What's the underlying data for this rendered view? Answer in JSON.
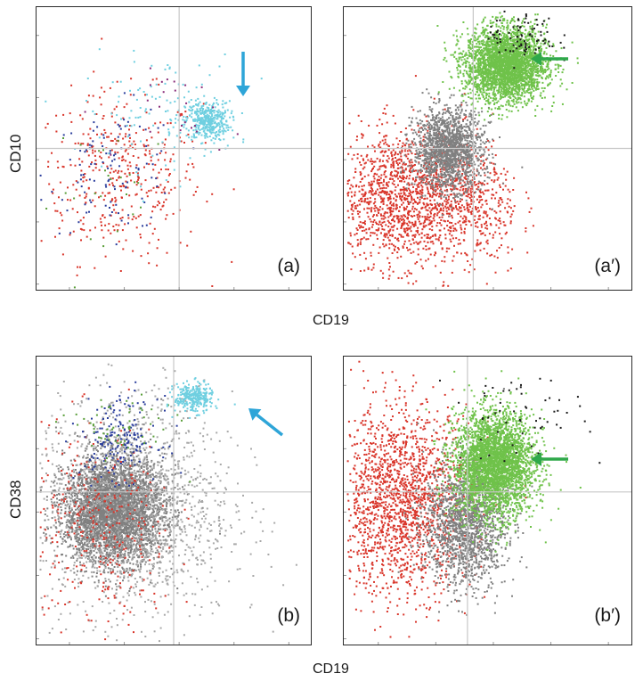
{
  "chart_data": [
    {
      "type": "scatter",
      "panel_label": "(a)",
      "xlabel": "CD19",
      "ylabel": "CD10",
      "axis_scale": "log",
      "quadrant_gates": {
        "x": 0.52,
        "y": 0.5
      },
      "populations": [
        {
          "color": "#d9362b",
          "cx": 0.3,
          "cy": 0.4,
          "sx": 0.15,
          "sy": 0.15,
          "n": 420
        },
        {
          "color": "#2a3d9c",
          "cx": 0.28,
          "cy": 0.43,
          "sx": 0.12,
          "sy": 0.11,
          "n": 110
        },
        {
          "color": "#6fcfe0",
          "cx": 0.62,
          "cy": 0.6,
          "sx": 0.04,
          "sy": 0.035,
          "n": 380
        },
        {
          "color": "#6fcfe0",
          "cx": 0.45,
          "cy": 0.63,
          "sx": 0.14,
          "sy": 0.1,
          "n": 120
        },
        {
          "color": "#5a9e3a",
          "cx": 0.3,
          "cy": 0.35,
          "sx": 0.12,
          "sy": 0.12,
          "n": 25
        },
        {
          "color": "#8a2d7a",
          "cx": 0.55,
          "cy": 0.62,
          "sx": 0.1,
          "sy": 0.08,
          "n": 25
        }
      ],
      "annotations": [
        {
          "type": "arrow",
          "color": "#2ea5d8",
          "direction": "down",
          "points_to": "CD19+ CD10+ cluster"
        }
      ]
    },
    {
      "type": "scatter",
      "panel_label": "(a′)",
      "xlabel": "CD19",
      "ylabel": "CD10",
      "axis_scale": "log",
      "quadrant_gates": {
        "x": 0.45,
        "y": 0.5
      },
      "populations": [
        {
          "color": "#d9362b",
          "cx": 0.2,
          "cy": 0.33,
          "sx": 0.13,
          "sy": 0.12,
          "n": 1500
        },
        {
          "color": "#d9362b",
          "cx": 0.45,
          "cy": 0.3,
          "sx": 0.08,
          "sy": 0.12,
          "n": 350
        },
        {
          "color": "#808080",
          "cx": 0.36,
          "cy": 0.5,
          "sx": 0.06,
          "sy": 0.07,
          "n": 1600
        },
        {
          "color": "#6fc24a",
          "cx": 0.56,
          "cy": 0.8,
          "sx": 0.07,
          "sy": 0.065,
          "n": 3000
        },
        {
          "color": "#1a1a1a",
          "cx": 0.62,
          "cy": 0.9,
          "sx": 0.06,
          "sy": 0.05,
          "n": 90
        }
      ],
      "annotations": [
        {
          "type": "arrow",
          "color": "#2fa84a",
          "direction": "left",
          "points_to": "CD19+ CD10+ cluster"
        }
      ]
    },
    {
      "type": "scatter",
      "panel_label": "(b)",
      "xlabel": "CD19",
      "ylabel": "CD38",
      "axis_scale": "log",
      "quadrant_gates": {
        "x": 0.5,
        "y": 0.53
      },
      "populations": [
        {
          "color": "#808080",
          "cx": 0.28,
          "cy": 0.47,
          "sx": 0.09,
          "sy": 0.09,
          "n": 4000
        },
        {
          "color": "#a8a8a8",
          "cx": 0.35,
          "cy": 0.48,
          "sx": 0.18,
          "sy": 0.2,
          "n": 1500
        },
        {
          "color": "#d9362b",
          "cx": 0.22,
          "cy": 0.4,
          "sx": 0.14,
          "sy": 0.18,
          "n": 350
        },
        {
          "color": "#2a3d9c",
          "cx": 0.3,
          "cy": 0.72,
          "sx": 0.07,
          "sy": 0.07,
          "n": 180
        },
        {
          "color": "#5a9e3a",
          "cx": 0.3,
          "cy": 0.75,
          "sx": 0.1,
          "sy": 0.06,
          "n": 60
        },
        {
          "color": "#6fcfe0",
          "cx": 0.57,
          "cy": 0.86,
          "sx": 0.035,
          "sy": 0.025,
          "n": 300
        }
      ],
      "annotations": [
        {
          "type": "arrow",
          "color": "#2ea5d8",
          "direction": "up-left",
          "points_to": "CD19+ CD38+ cluster"
        }
      ]
    },
    {
      "type": "scatter",
      "panel_label": "(b′)",
      "xlabel": "CD19",
      "ylabel": "CD38",
      "axis_scale": "log",
      "quadrant_gates": {
        "x": 0.43,
        "y": 0.53
      },
      "populations": [
        {
          "color": "#d9362b",
          "cx": 0.2,
          "cy": 0.5,
          "sx": 0.12,
          "sy": 0.16,
          "n": 1800
        },
        {
          "color": "#808080",
          "cx": 0.42,
          "cy": 0.42,
          "sx": 0.07,
          "sy": 0.11,
          "n": 1600
        },
        {
          "color": "#6fc24a",
          "cx": 0.52,
          "cy": 0.63,
          "sx": 0.07,
          "sy": 0.09,
          "n": 3200
        },
        {
          "color": "#1a1a1a",
          "cx": 0.6,
          "cy": 0.8,
          "sx": 0.12,
          "sy": 0.08,
          "n": 60
        }
      ],
      "annotations": [
        {
          "type": "arrow",
          "color": "#2fa84a",
          "direction": "left",
          "points_to": "CD19+ CD38+ cluster"
        }
      ]
    }
  ],
  "labels": {
    "top_ylabel": "CD10",
    "top_xlabel": "CD19",
    "bottom_ylabel": "CD38",
    "bottom_xlabel": "CD19"
  }
}
